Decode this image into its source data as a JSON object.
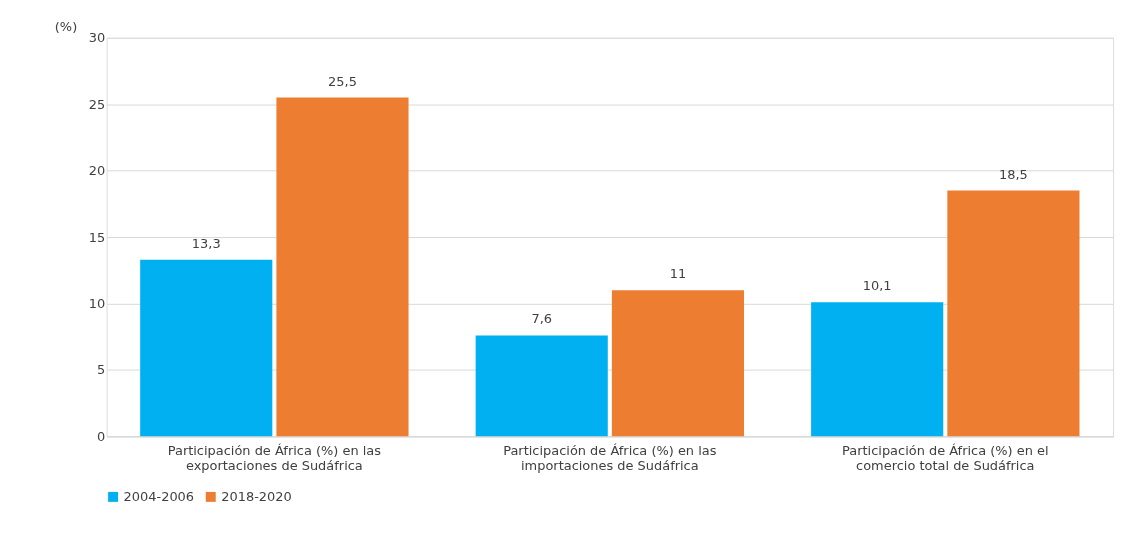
{
  "chart_data": {
    "type": "bar",
    "ylabel": "(%)",
    "categories": [
      "Participación de África (%) en las exportaciones de Sudáfrica",
      "Participación de África (%) en las importaciones de Sudáfrica",
      "Participación de África (%) en el comercio total de Sudáfrica"
    ],
    "series": [
      {
        "name": "2004-2006",
        "color": "#00b0f0",
        "values": [
          13.3,
          7.6,
          10.1
        ],
        "value_labels": [
          "13,3",
          "7,6",
          "10,1"
        ]
      },
      {
        "name": "2018-2020",
        "color": "#ed7d31",
        "values": [
          25.5,
          11,
          18.5
        ],
        "value_labels": [
          "25,5",
          "11",
          "18,5"
        ]
      }
    ],
    "ylim": [
      0,
      30
    ],
    "yticks": [
      0,
      5,
      10,
      15,
      20,
      25,
      30
    ],
    "grid": "y",
    "legend": "bottom"
  }
}
